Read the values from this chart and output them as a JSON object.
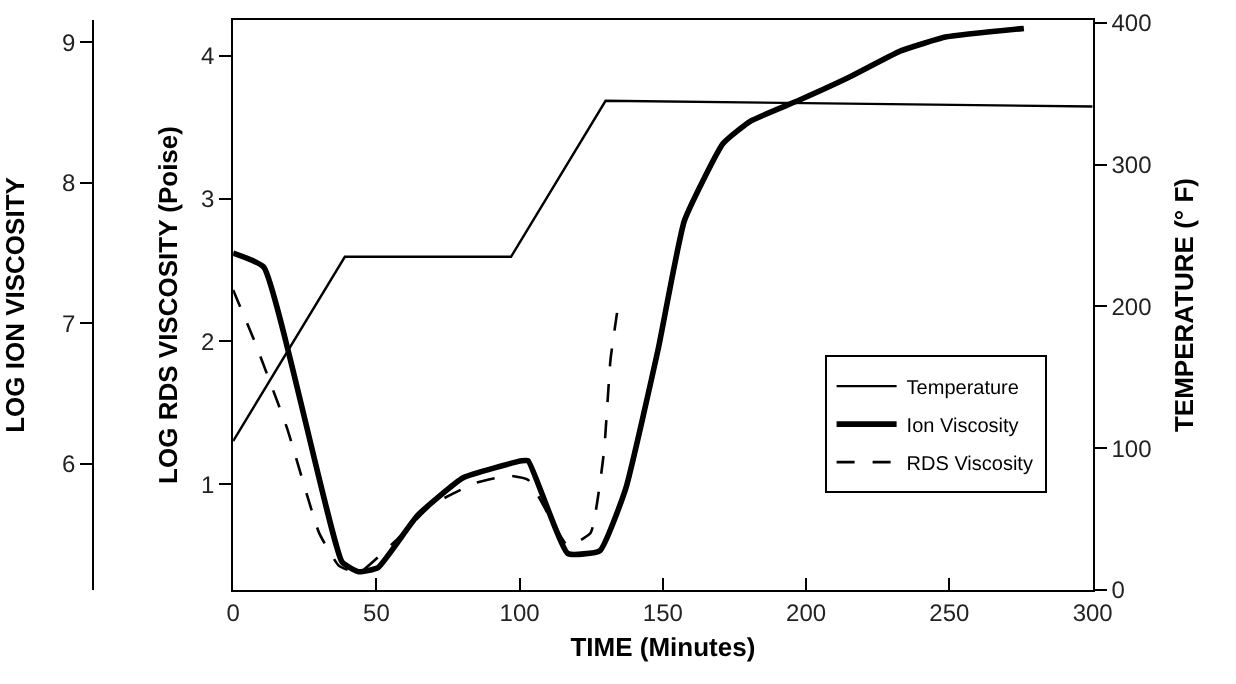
{
  "chart_data": {
    "type": "line",
    "xlabel": "TIME (Minutes)",
    "ylabel": "LOG RDS VISCOSITY (Poise)",
    "y2label": "TEMPERATURE (° F)",
    "y3label": "LOG ION VISCOSITY",
    "xlim": [
      0,
      300
    ],
    "xticks": [
      0,
      50,
      100,
      150,
      200,
      250,
      300
    ],
    "ylim": [
      0.26,
      4.25
    ],
    "yticks": [
      1,
      2,
      3,
      4
    ],
    "y2lim": [
      0,
      402
    ],
    "y2ticks": [
      0,
      100,
      200,
      300,
      400
    ],
    "y3lim": [
      5.1,
      9.16
    ],
    "y3ticks": [
      6,
      7,
      8,
      9
    ],
    "legend": "bottom right",
    "marker": "none",
    "series": [
      {
        "name": "Temperature",
        "color": "#000000",
        "axis": "y2",
        "line_style": "solid",
        "x": [
          0,
          39,
          97,
          130,
          300
        ],
        "values": [
          105,
          235,
          235,
          345,
          341
        ]
      },
      {
        "name": "Ion Viscosity",
        "color": "#000000",
        "axis": "y3",
        "line_style": "solid",
        "x": [
          0,
          10.7,
          38,
          43.8,
          50.6,
          64.3,
          80.3,
          100.8,
          103,
          116.8,
          128,
          137,
          148.4,
          157.5,
          171,
          180.6,
          197.7,
          214.8,
          233,
          249,
          276
        ],
        "values": [
          7.5,
          7.4,
          5.3,
          5.23,
          5.26,
          5.63,
          5.9,
          6.02,
          6.02,
          5.36,
          5.38,
          5.82,
          6.82,
          7.73,
          8.28,
          8.44,
          8.59,
          8.75,
          8.94,
          9.04,
          9.1
        ]
      },
      {
        "name": "RDS Viscosity",
        "color": "#000000",
        "line_style": "dashed",
        "x": [
          0,
          7.3,
          18.7,
          30,
          36.9,
          43.8,
          57.5,
          68.9,
          84.8,
          96.2,
          103,
          116.8,
          124.8,
          129.4,
          131.7,
          134
        ],
        "values": [
          2.36,
          2.01,
          1.4,
          0.66,
          0.43,
          0.38,
          0.62,
          0.85,
          1.01,
          1.06,
          1.03,
          0.57,
          0.66,
          1.22,
          1.87,
          2.2
        ]
      }
    ]
  }
}
